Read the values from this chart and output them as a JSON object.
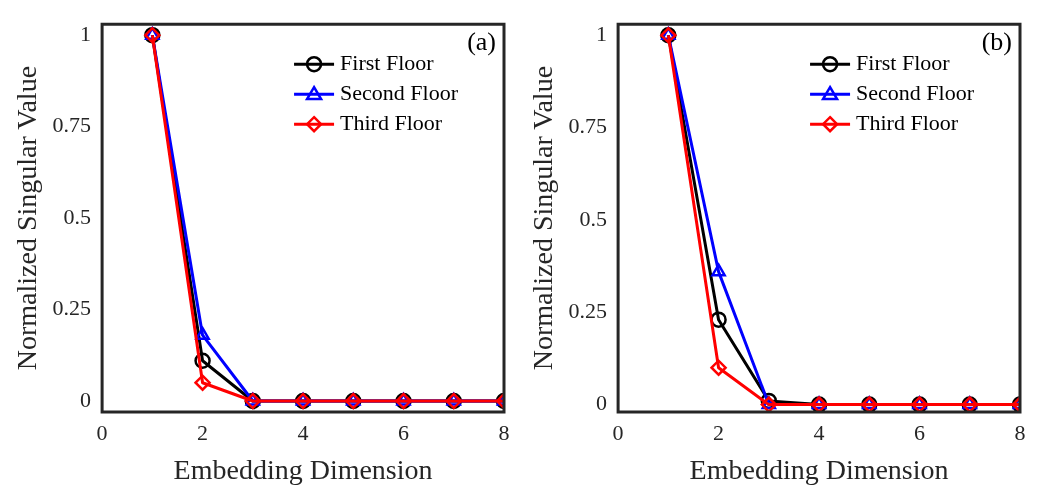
{
  "chart_data": [
    {
      "type": "line",
      "xlabel": "Embedding Dimension",
      "ylabel": "Normalized Singular Value",
      "annotations": [
        "(a)"
      ],
      "x": [
        1,
        2,
        3,
        4,
        5,
        6,
        7,
        8
      ],
      "xlim": [
        0,
        8
      ],
      "xticks": [
        0,
        2,
        4,
        6,
        8
      ],
      "ylim": [
        -0.03,
        1.03
      ],
      "yticks": [
        0,
        0.25,
        0.5,
        0.75,
        1
      ],
      "grid": false,
      "legend": "top right",
      "line_style": "solid",
      "series": [
        {
          "name": "First Floor",
          "color": "#000000",
          "marker": "circle",
          "values": [
            1,
            0.11,
            0,
            0,
            0,
            0,
            0,
            0
          ]
        },
        {
          "name": "Second Floor",
          "color": "#0000ff",
          "marker": "triangle",
          "values": [
            1,
            0.18,
            0,
            0,
            0,
            0,
            0,
            0
          ]
        },
        {
          "name": "Third Floor",
          "color": "#ff0000",
          "marker": "diamond",
          "values": [
            1,
            0.05,
            0,
            0,
            0,
            0,
            0,
            0
          ]
        }
      ]
    },
    {
      "type": "line",
      "xlabel": "Embedding Dimension",
      "ylabel": "Normalized Singular Value",
      "annotations": [
        "(b)"
      ],
      "x": [
        1,
        2,
        3,
        4,
        5,
        6,
        7,
        8
      ],
      "xlim": [
        0,
        8
      ],
      "xticks": [
        0,
        2,
        4,
        6,
        8
      ],
      "ylim": [
        -0.02,
        1.03
      ],
      "yticks": [
        0,
        0.25,
        0.5,
        0.75,
        1
      ],
      "grid": false,
      "legend": "top right",
      "line_style": "solid",
      "series": [
        {
          "name": "First Floor",
          "color": "#000000",
          "marker": "circle",
          "values": [
            1,
            0.23,
            0.01,
            0,
            0,
            0,
            0,
            0
          ]
        },
        {
          "name": "Second Floor",
          "color": "#0000ff",
          "marker": "triangle",
          "values": [
            1,
            0.36,
            0,
            0,
            0,
            0,
            0,
            0
          ]
        },
        {
          "name": "Third Floor",
          "color": "#ff0000",
          "marker": "diamond",
          "values": [
            1,
            0.1,
            0,
            0,
            0,
            0,
            0,
            0
          ]
        }
      ]
    }
  ]
}
